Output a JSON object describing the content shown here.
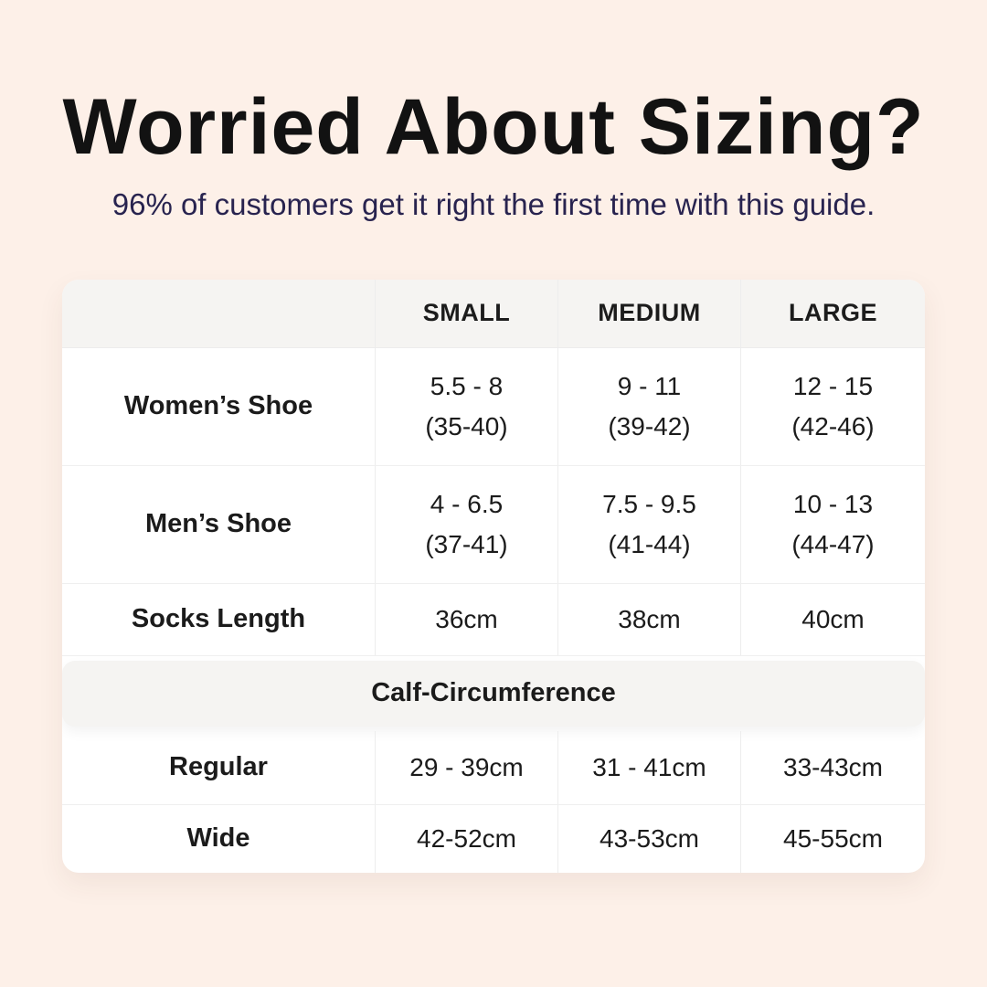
{
  "colors": {
    "background": "#fdf0e8",
    "card": "#ffffff",
    "header_bg": "#f5f4f2",
    "band_bg": "#f5f4f2",
    "divider": "#ededed",
    "title": "#121212",
    "subtitle": "#28234f",
    "table_text": "#1b1b1b"
  },
  "header": {
    "title": "Worried About Sizing?",
    "subtitle": "96% of customers get it right the first time with this guide."
  },
  "table": {
    "headers": [
      "SMALL",
      "MEDIUM",
      "LARGE"
    ],
    "shoe_rows": [
      {
        "label": "Women’s Shoe",
        "cells": [
          {
            "us": "5.5 - 8",
            "eu": "(35-40)"
          },
          {
            "us": "9 - 11",
            "eu": "(39-42)"
          },
          {
            "us": "12 - 15",
            "eu": "(42-46)"
          }
        ]
      },
      {
        "label": "Men’s Shoe",
        "cells": [
          {
            "us": "4 - 6.5",
            "eu": "(37-41)"
          },
          {
            "us": "7.5 - 9.5",
            "eu": "(41-44)"
          },
          {
            "us": "10 - 13",
            "eu": "(44-47)"
          }
        ]
      }
    ],
    "socks_row": {
      "label": "Socks Length",
      "cells": [
        "36cm",
        "38cm",
        "40cm"
      ]
    },
    "section_header": "Calf-Circumference",
    "calf_rows": [
      {
        "label": "Regular",
        "cells": [
          "29 - 39cm",
          "31 - 41cm",
          "33-43cm"
        ]
      },
      {
        "label": "Wide",
        "cells": [
          "42-52cm",
          "43-53cm",
          "45-55cm"
        ]
      }
    ]
  },
  "chart_data": {
    "type": "table",
    "title": "Worried About Sizing?",
    "subtitle": "96% of customers get it right the first time with this guide.",
    "columns": [
      "",
      "SMALL",
      "MEDIUM",
      "LARGE"
    ],
    "rows": [
      [
        "Women’s Shoe",
        "5.5 - 8 (35-40)",
        "9 - 11 (39-42)",
        "12 - 15 (42-46)"
      ],
      [
        "Men’s Shoe",
        "4 - 6.5 (37-41)",
        "7.5 - 9.5 (41-44)",
        "10 - 13 (44-47)"
      ],
      [
        "Socks Length",
        "36cm",
        "38cm",
        "40cm"
      ],
      [
        "Calf-Circumference",
        "",
        "",
        ""
      ],
      [
        "Regular",
        "29 - 39cm",
        "31 - 41cm",
        "33-43cm"
      ],
      [
        "Wide",
        "42-52cm",
        "43-53cm",
        "45-55cm"
      ]
    ],
    "layout": "section row 'Calf-Circumference' spans all columns as a gray band"
  }
}
